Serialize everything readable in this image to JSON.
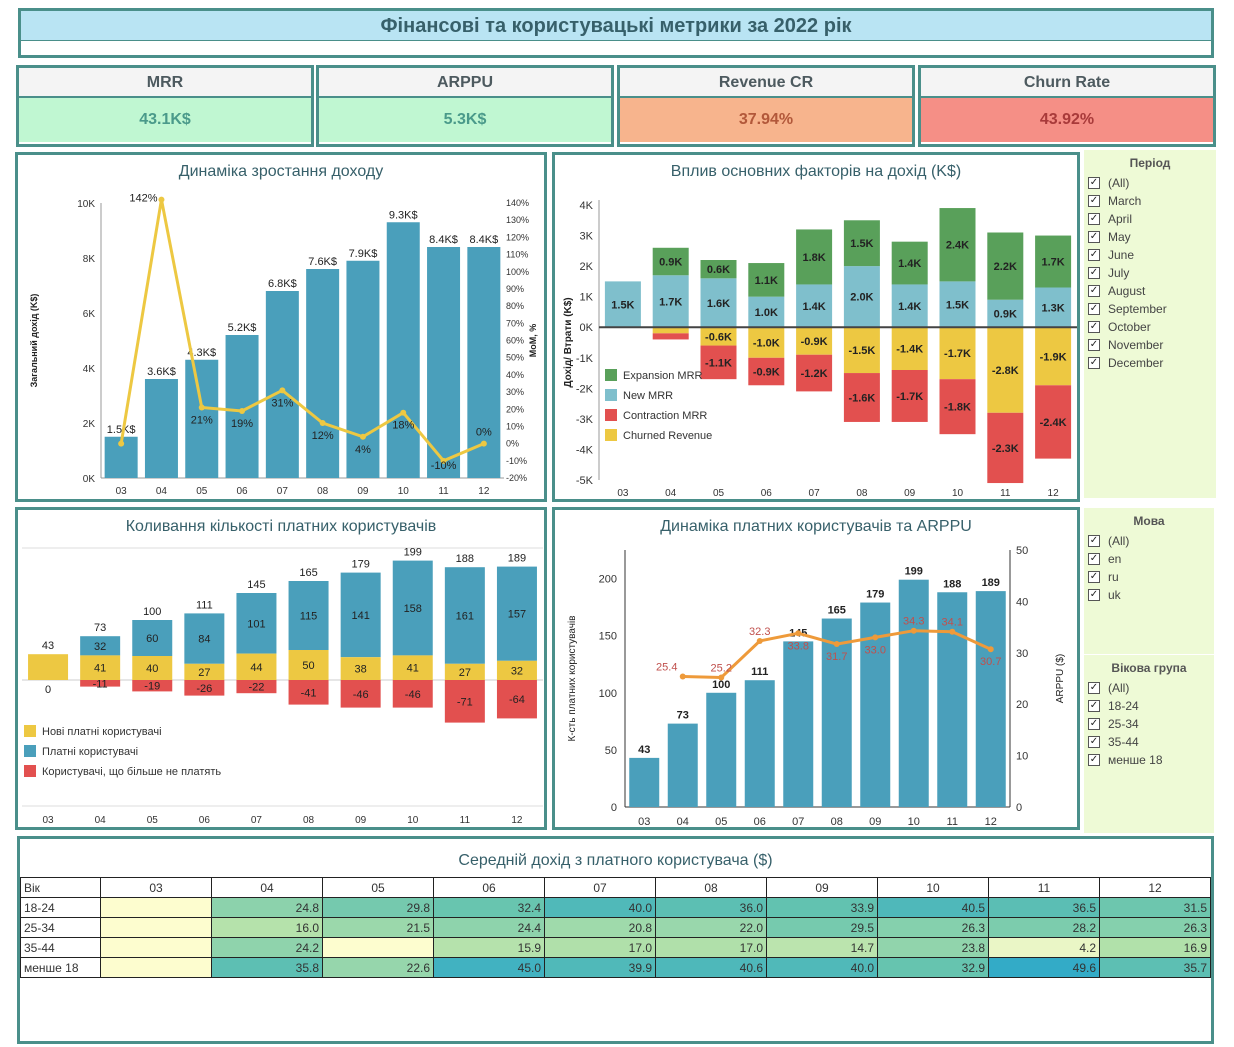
{
  "title": "Фінансові та користувацькі метрики за 2022 рік",
  "kpis": [
    {
      "label": "MRR",
      "value": "43.1K$",
      "bg": "#c0f7d2",
      "color": "#4a9a8a"
    },
    {
      "label": "ARPPU",
      "value": "5.3K$",
      "bg": "#c0f7d2",
      "color": "#4a9a8a"
    },
    {
      "label": "Revenue CR",
      "value": "37.94%",
      "bg": "#f7b48d",
      "color": "#b2583a"
    },
    {
      "label": "Churn Rate",
      "value": "43.92%",
      "bg": "#f58f86",
      "color": "#a83a3a"
    }
  ],
  "months": [
    "03",
    "04",
    "05",
    "06",
    "07",
    "08",
    "09",
    "10",
    "11",
    "12"
  ],
  "panel1": {
    "title": "Динаміка зростання доходу",
    "ylabel_left": "Загальний дохід (K$)",
    "ylabel_right": "MoM, %",
    "left_ticks": [
      "0K",
      "2K",
      "4K",
      "6K",
      "8K",
      "10K"
    ],
    "right_ticks": [
      "-20%",
      "-10%",
      "0%",
      "10%",
      "20%",
      "30%",
      "40%",
      "50%",
      "60%",
      "70%",
      "80%",
      "90%",
      "100%",
      "110%",
      "120%",
      "130%",
      "140%"
    ]
  },
  "panel2": {
    "title": "Вплив основних факторів на дохід (K$)",
    "ylabel": "Дохід/ Втрати (K$)",
    "ticks": [
      "-5K",
      "-4K",
      "-3K",
      "-2K",
      "-1K",
      "0K",
      "1K",
      "2K",
      "3K",
      "4K"
    ],
    "legend": [
      "Expansion MRR",
      "New MRR",
      "Contraction MRR",
      "Churned Revenue"
    ]
  },
  "panel3": {
    "title": "Коливання кількості платних користувачів",
    "legend": [
      "Нові платні користувачі",
      "Платні користувачі",
      "Користувачі, що більше не платять"
    ]
  },
  "panel4": {
    "title": "Динаміка платних користувачів та ARPPU",
    "ylabel_left": "К-сть платних користувачів",
    "ylabel_right": "ARPPU ($)",
    "left_ticks": [
      "0",
      "50",
      "100",
      "150",
      "200"
    ],
    "right_ticks": [
      "0",
      "10",
      "20",
      "30",
      "40",
      "50"
    ]
  },
  "filters": {
    "period": {
      "title": "Період",
      "items": [
        "(All)",
        "March",
        "April",
        "May",
        "June",
        "July",
        "August",
        "September",
        "October",
        "November",
        "December"
      ]
    },
    "language": {
      "title": "Мова",
      "items": [
        "(All)",
        "en",
        "ru",
        "uk"
      ]
    },
    "age": {
      "title": "Вікова група",
      "items": [
        "(All)",
        "18-24",
        "25-34",
        "35-44",
        "менше 18"
      ]
    }
  },
  "panel5": {
    "title": "Середній дохід з платного користувача ($)",
    "corner": "Вік",
    "rows": [
      {
        "label": "18-24",
        "values": [
          "",
          "24.8",
          "29.8",
          "32.4",
          "40.0",
          "36.0",
          "33.9",
          "40.5",
          "36.5",
          "31.5"
        ]
      },
      {
        "label": "25-34",
        "values": [
          "",
          "16.0",
          "21.5",
          "24.4",
          "20.8",
          "22.0",
          "29.5",
          "26.3",
          "28.2",
          "26.3"
        ]
      },
      {
        "label": "35-44",
        "values": [
          "",
          "24.2",
          "",
          "15.9",
          "17.0",
          "17.0",
          "14.7",
          "23.8",
          "4.2",
          "16.9"
        ]
      },
      {
        "label": "менше 18",
        "values": [
          "",
          "35.8",
          "22.6",
          "45.0",
          "39.9",
          "40.6",
          "40.0",
          "32.9",
          "49.6",
          "35.7"
        ]
      }
    ]
  },
  "colors": {
    "teal": "#4a9fbb",
    "yellow": "#edc842",
    "red": "#e2504f",
    "green": "#59a05a",
    "lightblue": "#7fbfcc",
    "orange": "#ee9a3a",
    "border": "#4a8f8a"
  },
  "chart_data": [
    {
      "type": "bar",
      "title": "Динаміка зростання доходу",
      "categories": [
        "03",
        "04",
        "05",
        "06",
        "07",
        "08",
        "09",
        "10",
        "11",
        "12"
      ],
      "series": [
        {
          "name": "Загальний дохід (K$)",
          "values": [
            1.5,
            3.6,
            4.3,
            5.2,
            6.8,
            7.6,
            7.9,
            9.3,
            8.4,
            8.4
          ],
          "labels": [
            "1.5K$",
            "3.6K$",
            "4.3K$",
            "5.2K$",
            "6.8K$",
            "7.6K$",
            "7.9K$",
            "9.3K$",
            "8.4K$",
            "8.4K$"
          ]
        },
        {
          "name": "MoM, %",
          "values": [
            0,
            142,
            21,
            19,
            31,
            12,
            4,
            18,
            -10,
            0
          ],
          "labels": [
            "",
            "142%",
            "21%",
            "19%",
            "31%",
            "12%",
            "4%",
            "18%",
            "-10%",
            "0%"
          ]
        }
      ],
      "ylim": [
        0,
        10
      ],
      "ylim_right": [
        -20,
        140
      ]
    },
    {
      "type": "bar",
      "title": "Вплив основних факторів на дохід (K$)",
      "categories": [
        "03",
        "04",
        "05",
        "06",
        "07",
        "08",
        "09",
        "10",
        "11",
        "12"
      ],
      "series": [
        {
          "name": "New MRR",
          "values": [
            1.5,
            1.7,
            1.6,
            1.0,
            1.4,
            2.0,
            1.4,
            1.5,
            0.9,
            1.3
          ]
        },
        {
          "name": "Expansion MRR",
          "values": [
            0,
            0.9,
            0.6,
            1.1,
            1.8,
            1.5,
            1.4,
            2.4,
            2.2,
            1.7
          ]
        },
        {
          "name": "Churned Revenue",
          "values": [
            0,
            -0.2,
            -0.6,
            -1.0,
            -0.9,
            -1.5,
            -1.4,
            -1.7,
            -2.8,
            -1.9
          ]
        },
        {
          "name": "Contraction MRR",
          "values": [
            0,
            -0.2,
            -1.1,
            -0.9,
            -1.2,
            -1.6,
            -1.7,
            -1.8,
            -2.3,
            -2.4
          ]
        }
      ],
      "ylim": [
        -5,
        4
      ]
    },
    {
      "type": "bar",
      "title": "Коливання кількості платних користувачів",
      "categories": [
        "03",
        "04",
        "05",
        "06",
        "07",
        "08",
        "09",
        "10",
        "11",
        "12"
      ],
      "series": [
        {
          "name": "Нові платні користувачі",
          "values": [
            43,
            41,
            40,
            27,
            44,
            50,
            38,
            41,
            27,
            32
          ]
        },
        {
          "name": "Платні користувачі",
          "values": [
            43,
            73,
            100,
            111,
            145,
            165,
            179,
            199,
            188,
            189
          ]
        },
        {
          "name": "Користувачі, що більше не платять",
          "values": [
            0,
            -11,
            -19,
            -26,
            -22,
            -41,
            -46,
            -46,
            -71,
            -64
          ]
        }
      ]
    },
    {
      "type": "bar",
      "title": "Динаміка платних користувачів та ARPPU",
      "categories": [
        "03",
        "04",
        "05",
        "06",
        "07",
        "08",
        "09",
        "10",
        "11",
        "12"
      ],
      "series": [
        {
          "name": "К-сть платних користувачів",
          "values": [
            43,
            73,
            100,
            111,
            145,
            165,
            179,
            199,
            188,
            189
          ]
        },
        {
          "name": "ARPPU ($)",
          "values": [
            null,
            25.4,
            25.2,
            32.3,
            33.8,
            31.7,
            33.0,
            34.3,
            34.1,
            30.7
          ]
        }
      ],
      "ylim": [
        0,
        225
      ],
      "ylim_right": [
        0,
        50
      ]
    },
    {
      "type": "heatmap",
      "title": "Середній дохід з платного користувача ($)",
      "x": [
        "03",
        "04",
        "05",
        "06",
        "07",
        "08",
        "09",
        "10",
        "11",
        "12"
      ],
      "y": [
        "18-24",
        "25-34",
        "35-44",
        "менше 18"
      ],
      "values": [
        [
          null,
          24.8,
          29.8,
          32.4,
          40.0,
          36.0,
          33.9,
          40.5,
          36.5,
          31.5
        ],
        [
          null,
          16.0,
          21.5,
          24.4,
          20.8,
          22.0,
          29.5,
          26.3,
          28.2,
          26.3
        ],
        [
          null,
          24.2,
          null,
          15.9,
          17.0,
          17.0,
          14.7,
          23.8,
          4.2,
          16.9
        ],
        [
          null,
          35.8,
          22.6,
          45.0,
          39.9,
          40.6,
          40.0,
          32.9,
          49.6,
          35.7
        ]
      ]
    }
  ]
}
